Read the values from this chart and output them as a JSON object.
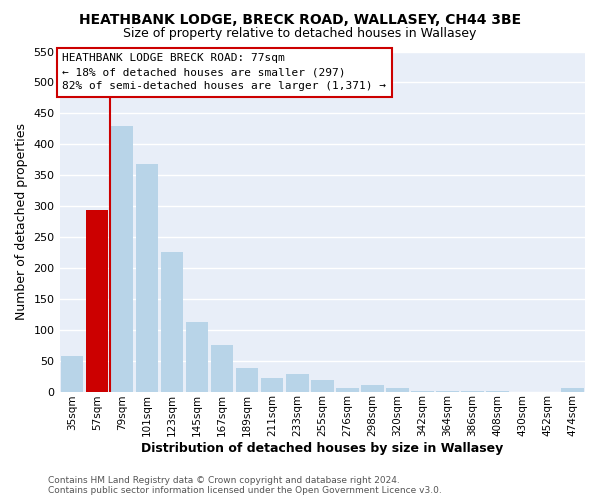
{
  "title": "HEATHBANK LODGE, BRECK ROAD, WALLASEY, CH44 3BE",
  "subtitle": "Size of property relative to detached houses in Wallasey",
  "xlabel": "Distribution of detached houses by size in Wallasey",
  "ylabel": "Number of detached properties",
  "bin_labels": [
    "35sqm",
    "57sqm",
    "79sqm",
    "101sqm",
    "123sqm",
    "145sqm",
    "167sqm",
    "189sqm",
    "211sqm",
    "233sqm",
    "255sqm",
    "276sqm",
    "298sqm",
    "320sqm",
    "342sqm",
    "364sqm",
    "386sqm",
    "408sqm",
    "430sqm",
    "452sqm",
    "474sqm"
  ],
  "bar_heights": [
    57,
    293,
    430,
    368,
    226,
    113,
    76,
    38,
    22,
    29,
    18,
    5,
    11,
    5,
    1,
    1,
    1,
    1,
    0,
    0,
    5
  ],
  "bar_color": "#b8d4e8",
  "highlight_bar_index": 1,
  "highlight_color": "#cc0000",
  "highlight_line_bar_index": 2,
  "ylim": [
    0,
    550
  ],
  "yticks": [
    0,
    50,
    100,
    150,
    200,
    250,
    300,
    350,
    400,
    450,
    500,
    550
  ],
  "annotation_title": "HEATHBANK LODGE BRECK ROAD: 77sqm",
  "annotation_line1": "← 18% of detached houses are smaller (297)",
  "annotation_line2": "82% of semi-detached houses are larger (1,371) →",
  "footer_line1": "Contains HM Land Registry data © Crown copyright and database right 2024.",
  "footer_line2": "Contains public sector information licensed under the Open Government Licence v3.0.",
  "plot_bg_color": "#e8eef8",
  "fig_bg_color": "#ffffff",
  "grid_color": "#ffffff",
  "title_fontsize": 10,
  "subtitle_fontsize": 9
}
